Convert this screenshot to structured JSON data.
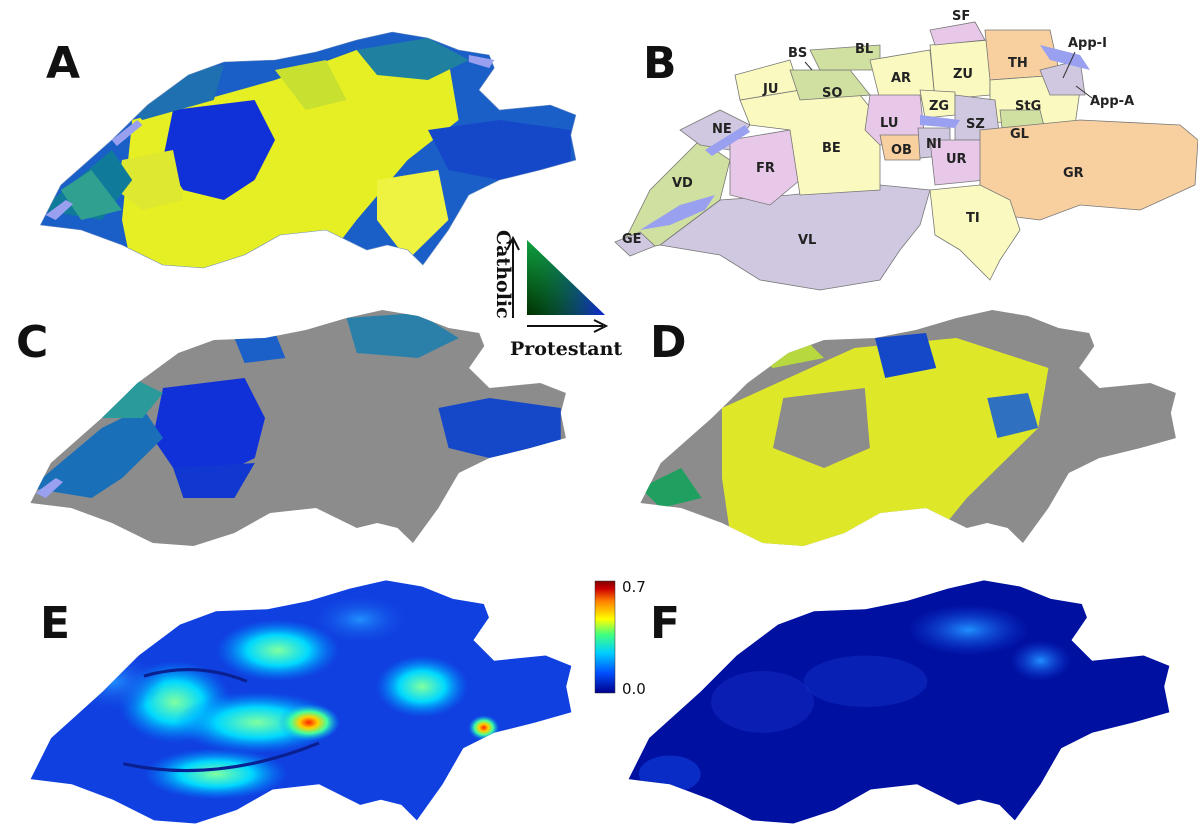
{
  "panels": [
    "A",
    "B",
    "C",
    "D",
    "E",
    "F"
  ],
  "canton_labels": [
    "SF",
    "BS",
    "BL",
    "App-I",
    "TH",
    "JU",
    "AR",
    "ZU",
    "SO",
    "App-A",
    "NE",
    "ZG",
    "StG",
    "LU",
    "SZ",
    "BE",
    "GL",
    "OB",
    "NI",
    "FR",
    "UR",
    "GR",
    "VD",
    "TI",
    "GE",
    "VL"
  ],
  "legend": {
    "vertical_label": "Catholic",
    "horizontal_label": "Protestant"
  },
  "colorbar": {
    "max_label": "0.7",
    "min_label": "0.0",
    "colors": [
      "#00008b",
      "#0050ff",
      "#00d0ff",
      "#40ff80",
      "#ffff00",
      "#ff8000",
      "#cc0000",
      "#800000"
    ]
  },
  "colors": {
    "protestant": "#1030d8",
    "catholic": "#e8f020",
    "mixed": "#109090",
    "masked": "#8c8c8c",
    "lake": "#9aa0f0",
    "canton_fills": [
      "#fafac0",
      "#e8c8e8",
      "#d0e0a0",
      "#f8d0a0",
      "#d0c8e0"
    ]
  }
}
